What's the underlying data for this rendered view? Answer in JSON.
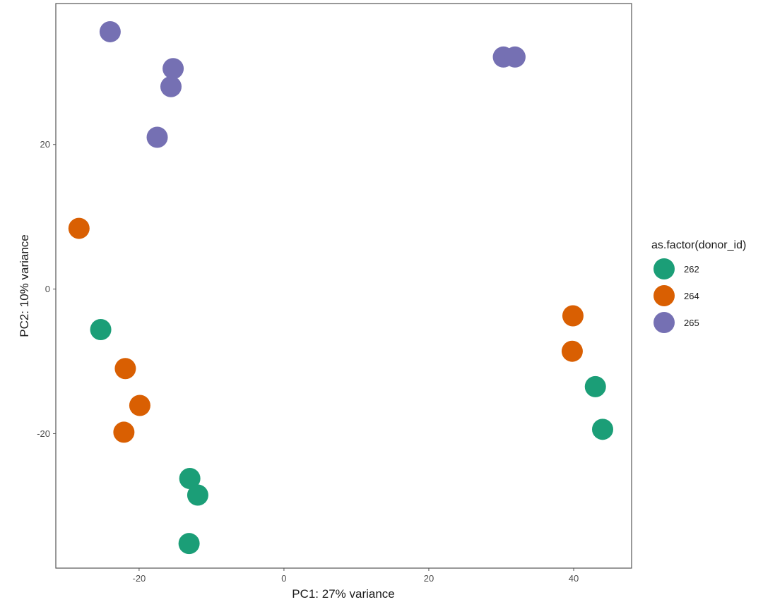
{
  "chart_data": {
    "type": "scatter",
    "title": "",
    "xlabel": "PC1: 27% variance",
    "ylabel": "PC2: 10% variance",
    "xlim": [
      -31.5,
      48
    ],
    "ylim": [
      -38.6,
      39.5
    ],
    "x_ticks": [
      -20,
      0,
      20,
      40
    ],
    "y_ticks": [
      -20,
      0,
      20
    ],
    "x_tick_labels": [
      "-20",
      "0",
      "20",
      "40"
    ],
    "y_tick_labels": [
      "-20",
      "0",
      "20"
    ],
    "grid": false,
    "legend": {
      "title": "as.factor(donor_id)",
      "position": "right"
    },
    "series": [
      {
        "name": "262",
        "color": "#1b9e77",
        "points": [
          {
            "x": -25.3,
            "y": -5.6
          },
          {
            "x": -13.0,
            "y": -26.2
          },
          {
            "x": -11.9,
            "y": -28.5
          },
          {
            "x": -13.1,
            "y": -35.2
          },
          {
            "x": 43.0,
            "y": -13.5
          },
          {
            "x": 44.0,
            "y": -19.4
          }
        ]
      },
      {
        "name": "264",
        "color": "#d95f02",
        "points": [
          {
            "x": -28.3,
            "y": 8.4
          },
          {
            "x": -21.9,
            "y": -11.0
          },
          {
            "x": -19.9,
            "y": -16.1
          },
          {
            "x": -22.1,
            "y": -19.8
          },
          {
            "x": 39.9,
            "y": -3.7
          },
          {
            "x": 39.8,
            "y": -8.6
          }
        ]
      },
      {
        "name": "265",
        "color": "#7570b3",
        "points": [
          {
            "x": -24.0,
            "y": 35.6
          },
          {
            "x": -15.3,
            "y": 30.5
          },
          {
            "x": -15.6,
            "y": 28.0
          },
          {
            "x": -17.5,
            "y": 21.0
          },
          {
            "x": 30.3,
            "y": 32.1
          },
          {
            "x": 31.9,
            "y": 32.1
          }
        ]
      }
    ]
  }
}
